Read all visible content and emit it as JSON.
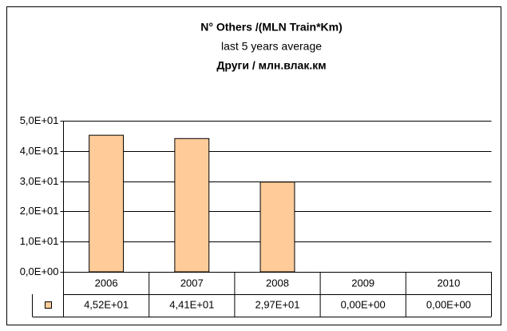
{
  "chart_data": {
    "type": "bar",
    "title": [
      "N° Others /(MLN Train*Km)",
      "last 5 years average",
      "Други / млн.влак.км"
    ],
    "categories": [
      "2006",
      "2007",
      "2008",
      "2009",
      "2010"
    ],
    "values": [
      45.2,
      44.1,
      29.7,
      0,
      0
    ],
    "value_labels": [
      "4,52E+01",
      "4,41E+01",
      "2,97E+01",
      "0,00E+00",
      "0,00E+00"
    ],
    "color": "#ffcc99",
    "ylim": [
      0,
      50
    ],
    "yticks": [
      {
        "value": 0,
        "label": "0,0E+00"
      },
      {
        "value": 10,
        "label": "1,0E+01"
      },
      {
        "value": 20,
        "label": "2,0E+01"
      },
      {
        "value": 30,
        "label": "3,0E+01"
      },
      {
        "value": 40,
        "label": "4,0E+01"
      },
      {
        "value": 50,
        "label": "5,0E+01"
      }
    ],
    "grid": true
  }
}
